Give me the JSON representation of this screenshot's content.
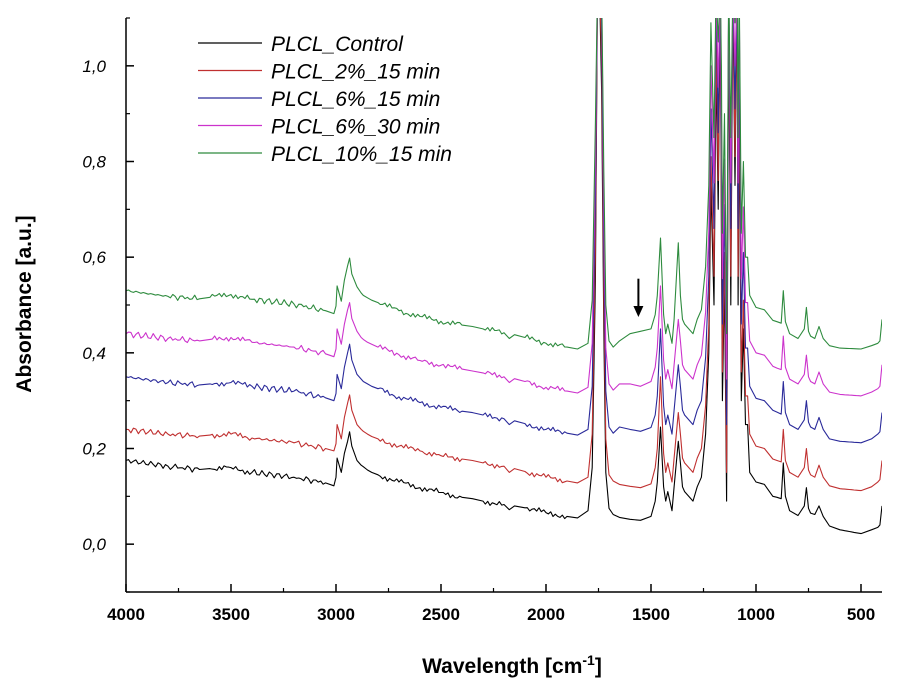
{
  "chart_data": {
    "type": "line",
    "title": "",
    "xlabel": "Wavelength [cm",
    "xlabel_sup": "-1",
    "xlabel_end": "]",
    "ylabel": "Absorbance [a.u.]",
    "xlim": [
      4000,
      400
    ],
    "ylim": [
      -0.1,
      1.1
    ],
    "x_reversed": true,
    "grid": false,
    "legend_position": "top-left",
    "xticks": [
      {
        "value": 4000,
        "label": "4000"
      },
      {
        "value": 3500,
        "label": "3500"
      },
      {
        "value": 3000,
        "label": "3000"
      },
      {
        "value": 2500,
        "label": "2500"
      },
      {
        "value": 2000,
        "label": "2000"
      },
      {
        "value": 1500,
        "label": "1500"
      },
      {
        "value": 1000,
        "label": "1000"
      },
      {
        "value": 500,
        "label": "500"
      }
    ],
    "yticks": [
      {
        "value": 0.0,
        "label": "0,0"
      },
      {
        "value": 0.2,
        "label": "0,2"
      },
      {
        "value": 0.4,
        "label": "0,4"
      },
      {
        "value": 0.6,
        "label": "0,6"
      },
      {
        "value": 0.8,
        "label": "0,8"
      },
      {
        "value": 1.0,
        "label": "1,0"
      }
    ],
    "annotations": [
      {
        "type": "arrow",
        "x": 1560,
        "y_from": 0.555,
        "y_to": 0.475
      }
    ],
    "spectrum_x": [
      4000,
      3800,
      3650,
      3600,
      3500,
      3400,
      3200,
      3050,
      3010,
      3000,
      2995,
      2975,
      2960,
      2945,
      2935,
      2925,
      2900,
      2880,
      2870,
      2850,
      2830,
      2800,
      2700,
      2600,
      2500,
      2400,
      2350,
      2300,
      2200,
      2175,
      2150,
      2100,
      2000,
      1900,
      1850,
      1800,
      1780,
      1765,
      1755,
      1745,
      1735,
      1725,
      1715,
      1700,
      1680,
      1650,
      1600,
      1550,
      1500,
      1480,
      1470,
      1455,
      1440,
      1430,
      1420,
      1400,
      1390,
      1370,
      1360,
      1350,
      1340,
      1300,
      1280,
      1260,
      1240,
      1225,
      1215,
      1200,
      1190,
      1180,
      1170,
      1165,
      1160,
      1150,
      1140,
      1130,
      1120,
      1110,
      1100,
      1090,
      1085,
      1080,
      1070,
      1060,
      1050,
      1040,
      1030,
      1000,
      960,
      920,
      900,
      880,
      870,
      860,
      840,
      800,
      770,
      760,
      750,
      740,
      720,
      700,
      680,
      650,
      600,
      500,
      450,
      420,
      410,
      400
    ],
    "series": [
      {
        "name": "PLCL_Control",
        "color": "#000000",
        "values": [
          0.175,
          0.163,
          0.156,
          0.158,
          0.16,
          0.15,
          0.14,
          0.128,
          0.122,
          0.14,
          0.18,
          0.15,
          0.19,
          0.215,
          0.235,
          0.205,
          0.175,
          0.165,
          0.162,
          0.155,
          0.15,
          0.145,
          0.13,
          0.118,
          0.108,
          0.098,
          0.095,
          0.09,
          0.083,
          0.072,
          0.08,
          0.076,
          0.066,
          0.058,
          0.055,
          0.07,
          0.16,
          0.55,
          1.17,
          1.17,
          0.95,
          0.45,
          0.15,
          0.075,
          0.062,
          0.056,
          0.052,
          0.05,
          0.058,
          0.09,
          0.13,
          0.245,
          0.12,
          0.09,
          0.11,
          0.07,
          0.12,
          0.215,
          0.17,
          0.12,
          0.11,
          0.09,
          0.12,
          0.14,
          0.23,
          0.4,
          0.75,
          0.5,
          1.0,
          0.7,
          1.15,
          0.65,
          0.3,
          0.55,
          0.09,
          1.1,
          0.5,
          1.15,
          0.75,
          1.17,
          0.5,
          0.9,
          0.3,
          0.45,
          0.25,
          0.25,
          0.15,
          0.13,
          0.125,
          0.1,
          0.098,
          0.095,
          0.17,
          0.1,
          0.07,
          0.06,
          0.08,
          0.118,
          0.075,
          0.065,
          0.062,
          0.08,
          0.058,
          0.038,
          0.03,
          0.022,
          0.03,
          0.035,
          0.04,
          0.08
        ]
      },
      {
        "name": "PLCL_2%_15 min",
        "color": "#c03030",
        "values": [
          0.24,
          0.23,
          0.226,
          0.228,
          0.23,
          0.222,
          0.212,
          0.2,
          0.195,
          0.21,
          0.25,
          0.22,
          0.265,
          0.295,
          0.312,
          0.28,
          0.25,
          0.24,
          0.236,
          0.23,
          0.225,
          0.22,
          0.205,
          0.195,
          0.185,
          0.178,
          0.175,
          0.17,
          0.163,
          0.15,
          0.158,
          0.152,
          0.14,
          0.132,
          0.128,
          0.14,
          0.23,
          0.62,
          1.17,
          1.17,
          1.02,
          0.52,
          0.22,
          0.145,
          0.132,
          0.125,
          0.121,
          0.118,
          0.126,
          0.16,
          0.2,
          0.35,
          0.19,
          0.15,
          0.17,
          0.13,
          0.18,
          0.275,
          0.23,
          0.18,
          0.17,
          0.15,
          0.18,
          0.2,
          0.29,
          0.46,
          0.81,
          0.56,
          1.06,
          0.76,
          1.17,
          0.71,
          0.36,
          0.61,
          0.15,
          1.16,
          0.56,
          1.17,
          0.81,
          1.17,
          0.56,
          0.96,
          0.36,
          0.51,
          0.31,
          0.31,
          0.23,
          0.205,
          0.2,
          0.178,
          0.175,
          0.172,
          0.24,
          0.175,
          0.15,
          0.14,
          0.16,
          0.2,
          0.155,
          0.145,
          0.14,
          0.165,
          0.14,
          0.122,
          0.116,
          0.112,
          0.12,
          0.13,
          0.135,
          0.175
        ]
      },
      {
        "name": "PLCL_6%_15 min",
        "color": "#2a2a9a",
        "values": [
          0.35,
          0.338,
          0.333,
          0.335,
          0.338,
          0.33,
          0.32,
          0.306,
          0.3,
          0.315,
          0.355,
          0.325,
          0.37,
          0.4,
          0.418,
          0.385,
          0.355,
          0.345,
          0.34,
          0.335,
          0.33,
          0.325,
          0.308,
          0.296,
          0.286,
          0.278,
          0.275,
          0.27,
          0.262,
          0.25,
          0.258,
          0.252,
          0.24,
          0.232,
          0.228,
          0.24,
          0.33,
          0.72,
          1.17,
          1.17,
          1.1,
          0.62,
          0.32,
          0.245,
          0.232,
          0.245,
          0.24,
          0.236,
          0.244,
          0.27,
          0.31,
          0.45,
          0.29,
          0.25,
          0.27,
          0.23,
          0.28,
          0.375,
          0.33,
          0.28,
          0.27,
          0.25,
          0.28,
          0.3,
          0.39,
          0.56,
          0.91,
          0.66,
          1.16,
          0.86,
          1.17,
          0.81,
          0.46,
          0.71,
          0.25,
          1.17,
          0.66,
          1.17,
          0.91,
          1.17,
          0.66,
          1.06,
          0.46,
          0.61,
          0.41,
          0.41,
          0.33,
          0.305,
          0.3,
          0.28,
          0.276,
          0.272,
          0.34,
          0.275,
          0.25,
          0.24,
          0.26,
          0.3,
          0.255,
          0.245,
          0.24,
          0.265,
          0.24,
          0.22,
          0.215,
          0.212,
          0.22,
          0.23,
          0.235,
          0.275
        ]
      },
      {
        "name": "PLCL_6%_30 min",
        "color": "#cc33cc",
        "values": [
          0.44,
          0.43,
          0.425,
          0.428,
          0.432,
          0.422,
          0.412,
          0.398,
          0.392,
          0.408,
          0.45,
          0.418,
          0.46,
          0.49,
          0.505,
          0.472,
          0.445,
          0.432,
          0.428,
          0.422,
          0.418,
          0.412,
          0.396,
          0.384,
          0.374,
          0.366,
          0.362,
          0.358,
          0.35,
          0.338,
          0.346,
          0.34,
          0.328,
          0.32,
          0.316,
          0.328,
          0.42,
          0.8,
          1.17,
          1.17,
          1.17,
          0.7,
          0.41,
          0.335,
          0.322,
          0.335,
          0.335,
          0.33,
          0.34,
          0.37,
          0.41,
          0.54,
          0.385,
          0.345,
          0.365,
          0.325,
          0.375,
          0.47,
          0.425,
          0.375,
          0.365,
          0.345,
          0.375,
          0.395,
          0.485,
          0.655,
          1.0,
          0.755,
          1.17,
          0.955,
          1.17,
          0.905,
          0.555,
          0.805,
          0.345,
          1.17,
          0.755,
          1.17,
          1.0,
          1.17,
          0.755,
          1.15,
          0.555,
          0.705,
          0.505,
          0.505,
          0.425,
          0.4,
          0.395,
          0.372,
          0.368,
          0.365,
          0.435,
          0.37,
          0.345,
          0.335,
          0.355,
          0.395,
          0.35,
          0.34,
          0.335,
          0.36,
          0.335,
          0.318,
          0.313,
          0.31,
          0.318,
          0.325,
          0.33,
          0.375
        ]
      },
      {
        "name": "PLCL_10%_15 min",
        "color": "#2e8b3e",
        "values": [
          0.53,
          0.518,
          0.513,
          0.516,
          0.522,
          0.512,
          0.502,
          0.488,
          0.482,
          0.498,
          0.54,
          0.508,
          0.552,
          0.582,
          0.598,
          0.565,
          0.538,
          0.525,
          0.52,
          0.515,
          0.51,
          0.505,
          0.488,
          0.476,
          0.466,
          0.458,
          0.455,
          0.45,
          0.442,
          0.43,
          0.438,
          0.432,
          0.42,
          0.412,
          0.408,
          0.42,
          0.51,
          0.88,
          1.17,
          1.17,
          1.17,
          0.78,
          0.5,
          0.425,
          0.412,
          0.425,
          0.44,
          0.445,
          0.45,
          0.48,
          0.52,
          0.64,
          0.48,
          0.44,
          0.46,
          0.42,
          0.47,
          0.63,
          0.52,
          0.47,
          0.46,
          0.44,
          0.47,
          0.49,
          0.58,
          0.75,
          1.09,
          0.85,
          1.17,
          1.05,
          1.17,
          1.0,
          0.65,
          0.9,
          0.44,
          1.17,
          0.85,
          1.17,
          1.09,
          1.17,
          0.85,
          1.17,
          0.65,
          0.8,
          0.6,
          0.6,
          0.52,
          0.495,
          0.49,
          0.468,
          0.465,
          0.462,
          0.53,
          0.465,
          0.44,
          0.43,
          0.45,
          0.495,
          0.445,
          0.435,
          0.43,
          0.455,
          0.43,
          0.415,
          0.41,
          0.408,
          0.415,
          0.42,
          0.425,
          0.47
        ]
      }
    ]
  }
}
